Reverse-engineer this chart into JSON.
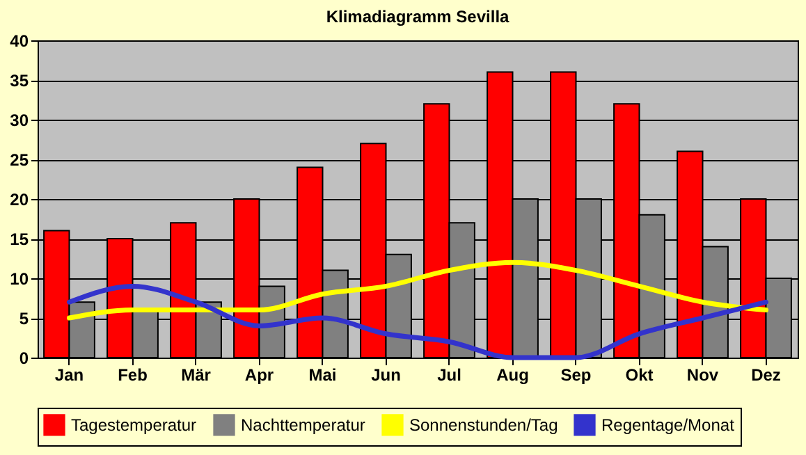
{
  "chart_data": {
    "type": "bar",
    "title": "Klimadiagramm Sevilla",
    "categories": [
      "Jan",
      "Feb",
      "Mär",
      "Apr",
      "Mai",
      "Jun",
      "Jul",
      "Aug",
      "Sep",
      "Okt",
      "Nov",
      "Dez"
    ],
    "series": [
      {
        "name": "Tagestemperatur",
        "color": "#ff0000",
        "values": [
          16,
          15,
          17,
          20,
          24,
          27,
          32,
          36,
          36,
          32,
          26,
          20
        ]
      },
      {
        "name": "Nachttemperatur",
        "color": "#808080",
        "values": [
          7,
          6,
          7,
          9,
          11,
          13,
          17,
          20,
          20,
          18,
          14,
          10
        ]
      },
      {
        "name": "Sonnenstunden/Tag",
        "type": "line",
        "color": "#ffff00",
        "values": [
          5,
          6,
          6,
          6,
          8,
          9,
          11,
          12,
          11,
          9,
          7,
          6
        ]
      },
      {
        "name": "Regentage/Monat",
        "type": "line",
        "color": "#3333cc",
        "values": [
          7,
          9,
          7,
          4,
          5,
          3,
          2,
          0,
          0,
          3,
          5,
          7
        ]
      }
    ],
    "ylim": [
      0,
      40
    ],
    "yticks": [
      0,
      5,
      10,
      15,
      20,
      25,
      30,
      35,
      40
    ],
    "grid": "y",
    "legend": "bottom"
  }
}
